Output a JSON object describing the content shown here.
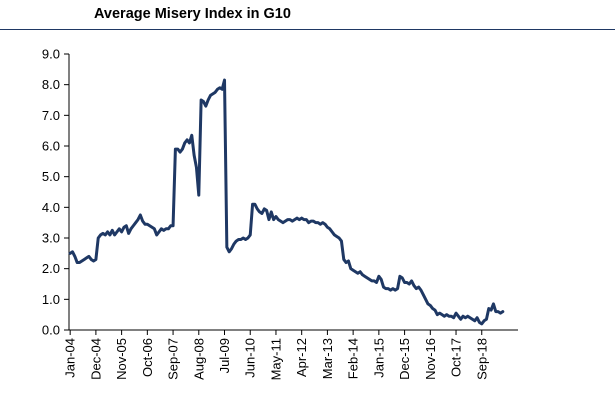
{
  "chart_data": {
    "type": "line",
    "title": "Average Misery Index in G10",
    "xlabel": "",
    "ylabel": "",
    "ylim": [
      0,
      9
    ],
    "yticks": [
      "0.0",
      "1.0",
      "2.0",
      "3.0",
      "4.0",
      "5.0",
      "6.0",
      "7.0",
      "8.0",
      "9.0"
    ],
    "xlim": [
      "2004-01",
      "2019-12"
    ],
    "xticks": [
      {
        "date": "2004-01",
        "label": "Jan-04"
      },
      {
        "date": "2004-12",
        "label": "Dec-04"
      },
      {
        "date": "2005-11",
        "label": "Nov-05"
      },
      {
        "date": "2006-10",
        "label": "Oct-06"
      },
      {
        "date": "2007-09",
        "label": "Sep-07"
      },
      {
        "date": "2008-08",
        "label": "Aug-08"
      },
      {
        "date": "2009-07",
        "label": "Jul-09"
      },
      {
        "date": "2010-06",
        "label": "Jun-10"
      },
      {
        "date": "2011-05",
        "label": "May-11"
      },
      {
        "date": "2012-04",
        "label": "Apr-12"
      },
      {
        "date": "2013-03",
        "label": "Mar-13"
      },
      {
        "date": "2014-02",
        "label": "Feb-14"
      },
      {
        "date": "2015-01",
        "label": "Jan-15"
      },
      {
        "date": "2015-12",
        "label": "Dec-15"
      },
      {
        "date": "2016-11",
        "label": "Nov-16"
      },
      {
        "date": "2017-10",
        "label": "Oct-17"
      },
      {
        "date": "2018-09",
        "label": "Sep-18"
      }
    ],
    "grid": false,
    "legend": "none",
    "series": [
      {
        "color": "#1f3864",
        "points": [
          [
            "2004-01",
            2.5
          ],
          [
            "2004-02",
            2.55
          ],
          [
            "2004-03",
            2.4
          ],
          [
            "2004-04",
            2.2
          ],
          [
            "2004-05",
            2.2
          ],
          [
            "2004-06",
            2.25
          ],
          [
            "2004-07",
            2.3
          ],
          [
            "2004-08",
            2.35
          ],
          [
            "2004-09",
            2.4
          ],
          [
            "2004-10",
            2.3
          ],
          [
            "2004-11",
            2.25
          ],
          [
            "2004-12",
            2.3
          ],
          [
            "2005-01",
            3.0
          ],
          [
            "2005-02",
            3.1
          ],
          [
            "2005-03",
            3.15
          ],
          [
            "2005-04",
            3.1
          ],
          [
            "2005-05",
            3.2
          ],
          [
            "2005-06",
            3.1
          ],
          [
            "2005-07",
            3.25
          ],
          [
            "2005-08",
            3.1
          ],
          [
            "2005-09",
            3.2
          ],
          [
            "2005-10",
            3.3
          ],
          [
            "2005-11",
            3.2
          ],
          [
            "2005-12",
            3.35
          ],
          [
            "2006-01",
            3.4
          ],
          [
            "2006-02",
            3.15
          ],
          [
            "2006-03",
            3.3
          ],
          [
            "2006-04",
            3.4
          ],
          [
            "2006-05",
            3.5
          ],
          [
            "2006-06",
            3.6
          ],
          [
            "2006-07",
            3.75
          ],
          [
            "2006-08",
            3.55
          ],
          [
            "2006-09",
            3.45
          ],
          [
            "2006-10",
            3.45
          ],
          [
            "2006-11",
            3.4
          ],
          [
            "2006-12",
            3.35
          ],
          [
            "2007-01",
            3.3
          ],
          [
            "2007-02",
            3.1
          ],
          [
            "2007-03",
            3.2
          ],
          [
            "2007-04",
            3.3
          ],
          [
            "2007-05",
            3.25
          ],
          [
            "2007-06",
            3.3
          ],
          [
            "2007-07",
            3.3
          ],
          [
            "2007-08",
            3.4
          ],
          [
            "2007-09",
            3.4
          ],
          [
            "2007-10",
            5.9
          ],
          [
            "2007-11",
            5.9
          ],
          [
            "2007-12",
            5.8
          ],
          [
            "2008-01",
            5.9
          ],
          [
            "2008-02",
            6.1
          ],
          [
            "2008-03",
            6.2
          ],
          [
            "2008-04",
            6.1
          ],
          [
            "2008-05",
            6.35
          ],
          [
            "2008-06",
            5.7
          ],
          [
            "2008-07",
            5.3
          ],
          [
            "2008-08",
            4.4
          ],
          [
            "2008-09",
            7.5
          ],
          [
            "2008-10",
            7.45
          ],
          [
            "2008-11",
            7.3
          ],
          [
            "2008-12",
            7.5
          ],
          [
            "2009-01",
            7.65
          ],
          [
            "2009-02",
            7.7
          ],
          [
            "2009-03",
            7.75
          ],
          [
            "2009-04",
            7.85
          ],
          [
            "2009-05",
            7.9
          ],
          [
            "2009-06",
            7.85
          ],
          [
            "2009-07",
            8.15
          ],
          [
            "2009-08",
            2.7
          ],
          [
            "2009-09",
            2.55
          ],
          [
            "2009-10",
            2.65
          ],
          [
            "2009-11",
            2.8
          ],
          [
            "2009-12",
            2.9
          ],
          [
            "2010-01",
            2.95
          ],
          [
            "2010-02",
            2.95
          ],
          [
            "2010-03",
            3.0
          ],
          [
            "2010-04",
            2.95
          ],
          [
            "2010-05",
            3.0
          ],
          [
            "2010-06",
            3.1
          ],
          [
            "2010-07",
            4.1
          ],
          [
            "2010-08",
            4.1
          ],
          [
            "2010-09",
            3.95
          ],
          [
            "2010-10",
            3.85
          ],
          [
            "2010-11",
            3.8
          ],
          [
            "2010-12",
            3.95
          ],
          [
            "2011-01",
            3.9
          ],
          [
            "2011-02",
            3.6
          ],
          [
            "2011-03",
            3.85
          ],
          [
            "2011-04",
            3.6
          ],
          [
            "2011-05",
            3.7
          ],
          [
            "2011-06",
            3.6
          ],
          [
            "2011-07",
            3.55
          ],
          [
            "2011-08",
            3.5
          ],
          [
            "2011-09",
            3.55
          ],
          [
            "2011-10",
            3.6
          ],
          [
            "2011-11",
            3.6
          ],
          [
            "2011-12",
            3.55
          ],
          [
            "2012-01",
            3.6
          ],
          [
            "2012-02",
            3.65
          ],
          [
            "2012-03",
            3.6
          ],
          [
            "2012-04",
            3.65
          ],
          [
            "2012-05",
            3.6
          ],
          [
            "2012-06",
            3.6
          ],
          [
            "2012-07",
            3.5
          ],
          [
            "2012-08",
            3.55
          ],
          [
            "2012-09",
            3.55
          ],
          [
            "2012-10",
            3.5
          ],
          [
            "2012-11",
            3.5
          ],
          [
            "2012-12",
            3.45
          ],
          [
            "2013-01",
            3.5
          ],
          [
            "2013-02",
            3.45
          ],
          [
            "2013-03",
            3.35
          ],
          [
            "2013-04",
            3.3
          ],
          [
            "2013-05",
            3.2
          ],
          [
            "2013-06",
            3.1
          ],
          [
            "2013-07",
            3.05
          ],
          [
            "2013-08",
            3.0
          ],
          [
            "2013-09",
            2.9
          ],
          [
            "2013-10",
            2.3
          ],
          [
            "2013-11",
            2.2
          ],
          [
            "2013-12",
            2.25
          ],
          [
            "2014-01",
            2.0
          ],
          [
            "2014-02",
            1.95
          ],
          [
            "2014-03",
            1.9
          ],
          [
            "2014-04",
            1.85
          ],
          [
            "2014-05",
            1.9
          ],
          [
            "2014-06",
            1.8
          ],
          [
            "2014-07",
            1.75
          ],
          [
            "2014-08",
            1.7
          ],
          [
            "2014-09",
            1.65
          ],
          [
            "2014-10",
            1.6
          ],
          [
            "2014-11",
            1.6
          ],
          [
            "2014-12",
            1.55
          ],
          [
            "2015-01",
            1.75
          ],
          [
            "2015-02",
            1.65
          ],
          [
            "2015-03",
            1.4
          ],
          [
            "2015-04",
            1.35
          ],
          [
            "2015-05",
            1.35
          ],
          [
            "2015-06",
            1.3
          ],
          [
            "2015-07",
            1.35
          ],
          [
            "2015-08",
            1.3
          ],
          [
            "2015-09",
            1.35
          ],
          [
            "2015-10",
            1.75
          ],
          [
            "2015-11",
            1.7
          ],
          [
            "2015-12",
            1.55
          ],
          [
            "2016-01",
            1.55
          ],
          [
            "2016-02",
            1.5
          ],
          [
            "2016-03",
            1.6
          ],
          [
            "2016-04",
            1.45
          ],
          [
            "2016-05",
            1.35
          ],
          [
            "2016-06",
            1.4
          ],
          [
            "2016-07",
            1.3
          ],
          [
            "2016-08",
            1.15
          ],
          [
            "2016-09",
            1.0
          ],
          [
            "2016-10",
            0.85
          ],
          [
            "2016-11",
            0.8
          ],
          [
            "2016-12",
            0.7
          ],
          [
            "2017-01",
            0.65
          ],
          [
            "2017-02",
            0.5
          ],
          [
            "2017-03",
            0.55
          ],
          [
            "2017-04",
            0.5
          ],
          [
            "2017-05",
            0.45
          ],
          [
            "2017-06",
            0.5
          ],
          [
            "2017-07",
            0.45
          ],
          [
            "2017-08",
            0.45
          ],
          [
            "2017-09",
            0.4
          ],
          [
            "2017-10",
            0.55
          ],
          [
            "2017-11",
            0.45
          ],
          [
            "2017-12",
            0.35
          ],
          [
            "2018-01",
            0.45
          ],
          [
            "2018-02",
            0.4
          ],
          [
            "2018-03",
            0.45
          ],
          [
            "2018-04",
            0.4
          ],
          [
            "2018-05",
            0.35
          ],
          [
            "2018-06",
            0.3
          ],
          [
            "2018-07",
            0.4
          ],
          [
            "2018-08",
            0.25
          ],
          [
            "2018-09",
            0.2
          ],
          [
            "2018-10",
            0.3
          ],
          [
            "2018-11",
            0.35
          ],
          [
            "2018-12",
            0.7
          ],
          [
            "2019-01",
            0.65
          ],
          [
            "2019-02",
            0.85
          ],
          [
            "2019-03",
            0.6
          ],
          [
            "2019-04",
            0.6
          ],
          [
            "2019-05",
            0.55
          ],
          [
            "2019-06",
            0.6
          ]
        ]
      }
    ]
  }
}
